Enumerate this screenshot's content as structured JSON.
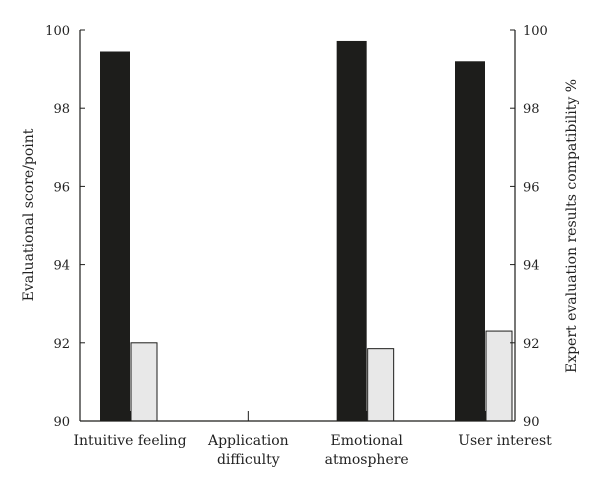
{
  "chart_data": {
    "type": "bar",
    "categories": [
      "Intuitive feeling",
      "Application difficulty",
      "Emotional atmosphere",
      "User interest"
    ],
    "category_labels": [
      [
        "Intuitive feeling"
      ],
      [
        "Application",
        "difficulty"
      ],
      [
        "Emotional",
        "atmosphere"
      ],
      [
        "User interest"
      ]
    ],
    "series": [
      {
        "axis": "left",
        "values": [
          99.45,
          90.0,
          99.72,
          99.2
        ],
        "color": "#1d1d1b"
      },
      {
        "axis": "right",
        "values": [
          92.0,
          90.0,
          91.85,
          92.3
        ],
        "color": "#e8e8e8"
      }
    ],
    "ylabel": "Evaluational score/point",
    "y2label": "Expert evaluation results compatibility %",
    "ylim": [
      90,
      100
    ],
    "y2lim": [
      90,
      100
    ],
    "yticks": [
      90,
      92,
      94,
      96,
      98,
      100
    ],
    "y2ticks": [
      90,
      92,
      94,
      96,
      98,
      100
    ],
    "grid": false,
    "legend": "none"
  }
}
